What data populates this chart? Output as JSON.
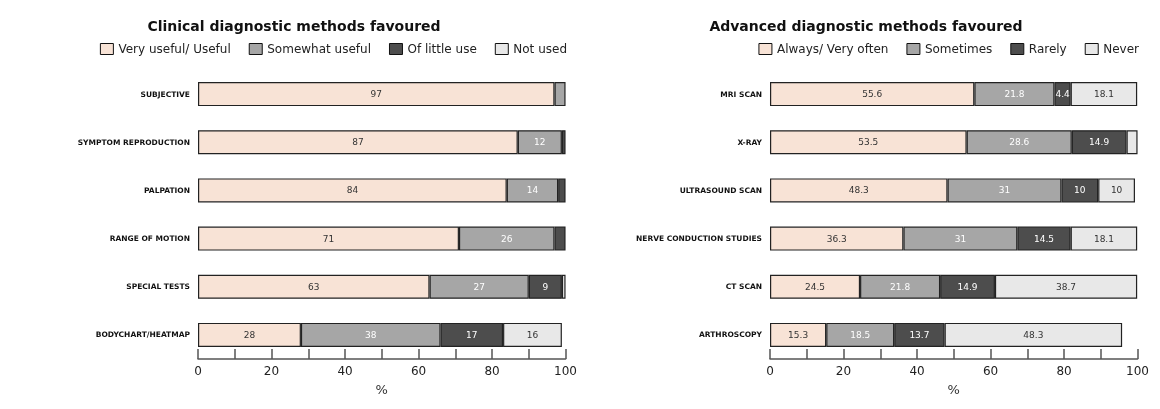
{
  "chart_data": [
    {
      "type": "bar",
      "orientation": "horizontal",
      "stacked": true,
      "title": "Clinical diagnostic methods favoured",
      "xlabel": "%",
      "categories": [
        "SUBJECTIVE",
        "SYMPTOM REPRODUCTION",
        "PALPATION",
        "RANGE OF MOTION",
        "SPECIAL TESTS",
        "BODYCHART/HEATMAP"
      ],
      "xlim": [
        0,
        100
      ],
      "xticks": [
        0,
        {
          "value": 10,
          "label": null
        },
        20,
        {
          "value": 30,
          "label": null
        },
        40,
        {
          "value": 50,
          "label": null
        },
        60,
        {
          "value": 70,
          "label": null
        },
        80,
        {
          "value": 90,
          "label": null
        },
        100
      ],
      "grid": false,
      "legend": "top",
      "series": [
        {
          "name": "Very useful/ Useful",
          "color": "#f8e3d6",
          "values": [
            97,
            87,
            84,
            71,
            63,
            28
          ],
          "value_labels": [
            "97",
            "87",
            "84",
            "71",
            "63",
            "28"
          ]
        },
        {
          "name": "Somewhat useful",
          "color": "#a6a6a6",
          "values": [
            3,
            12,
            14,
            26,
            27,
            38
          ],
          "value_labels": [
            null,
            "12",
            "14",
            "26",
            "27",
            "38"
          ]
        },
        {
          "name": "Of little use",
          "color": "#4d4d4d",
          "values": [
            0,
            1,
            2,
            3,
            9,
            17
          ],
          "value_labels": [
            null,
            null,
            null,
            null,
            "9",
            "17"
          ]
        },
        {
          "name": "Not used",
          "color": "#e8e8e8",
          "values": [
            0,
            0,
            0,
            0,
            1,
            16
          ],
          "value_labels": [
            null,
            null,
            null,
            null,
            null,
            "16"
          ]
        }
      ]
    },
    {
      "type": "bar",
      "orientation": "horizontal",
      "stacked": true,
      "title": "Advanced diagnostic methods favoured",
      "xlabel": "%",
      "categories": [
        "MRI SCAN",
        "X-RAY",
        "ULTRASOUND SCAN",
        "NERVE CONDUCTION STUDIES",
        "CT SCAN",
        "ARTHROSCOPY"
      ],
      "xlim": [
        0,
        100
      ],
      "xticks": [
        0,
        {
          "value": 10,
          "label": null
        },
        20,
        {
          "value": 30,
          "label": null
        },
        40,
        {
          "value": 50,
          "label": null
        },
        60,
        {
          "value": 70,
          "label": null
        },
        80,
        {
          "value": 90,
          "label": null
        },
        100
      ],
      "grid": false,
      "legend": "top",
      "series": [
        {
          "name": "Always/ Very often",
          "color": "#f8e3d6",
          "values": [
            55.6,
            53.5,
            48.3,
            36.3,
            24.5,
            15.3
          ],
          "value_labels": [
            "55.6",
            "53.5",
            "48.3",
            "36.3",
            "24.5",
            "15.3"
          ]
        },
        {
          "name": "Sometimes",
          "color": "#a6a6a6",
          "values": [
            21.8,
            28.6,
            31,
            31,
            21.8,
            18.5
          ],
          "value_labels": [
            "21.8",
            "28.6",
            "31",
            "31",
            "21.8",
            "18.5"
          ]
        },
        {
          "name": "Rarely",
          "color": "#4d4d4d",
          "values": [
            4.4,
            14.9,
            10,
            14.5,
            14.9,
            13.7
          ],
          "value_labels": [
            "4.4",
            "14.9",
            "10",
            "14.5",
            "14.9",
            "13.7"
          ]
        },
        {
          "name": "Never",
          "color": "#e8e8e8",
          "values": [
            18.1,
            3,
            10,
            18.1,
            38.7,
            48.3
          ],
          "value_labels": [
            "18.1",
            null,
            "10",
            "18.1",
            "38.7",
            "48.3"
          ]
        }
      ]
    }
  ]
}
